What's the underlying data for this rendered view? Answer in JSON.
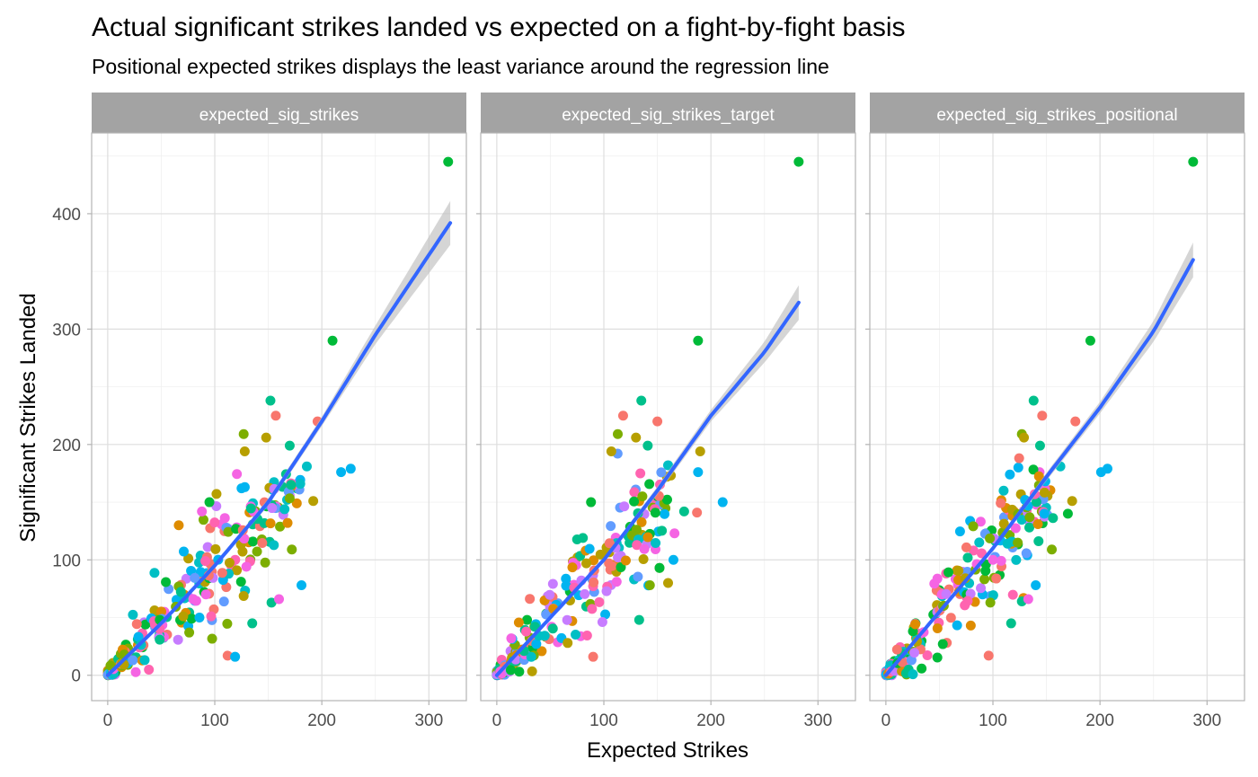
{
  "chart_data": {
    "type": "scatter",
    "title": "Actual significant strikes landed vs expected on a fight-by-fight basis",
    "subtitle": "Positional expected strikes displays the least variance around the regression line",
    "xlabel": "Expected Strikes",
    "ylabel": "Significant Strikes Landed",
    "xlim": [
      -15,
      335
    ],
    "ylim": [
      -22,
      470
    ],
    "x_ticks": [
      0,
      100,
      200,
      300
    ],
    "y_ticks": [
      0,
      100,
      200,
      300,
      400
    ],
    "grid": true,
    "legend": "none",
    "point_colors": [
      "#F8766D",
      "#DE8C00",
      "#B79F00",
      "#7CAE00",
      "#00BA38",
      "#00C08B",
      "#00BFC4",
      "#00B4F0",
      "#619CFF",
      "#C77CFF",
      "#F564E3",
      "#FF64B0"
    ],
    "line_color": "#3366FF",
    "ribbon_color": "#BEBEBE",
    "panels": [
      {
        "facet": "expected_sig_strikes",
        "regression_line": [
          [
            0,
            0
          ],
          [
            50,
            45
          ],
          [
            100,
            95
          ],
          [
            150,
            150
          ],
          [
            200,
            220
          ],
          [
            250,
            295
          ],
          [
            320,
            392
          ]
        ],
        "ribbon_halfwidth": [
          [
            0,
            1
          ],
          [
            100,
            2
          ],
          [
            200,
            4
          ],
          [
            250,
            8
          ],
          [
            320,
            19
          ]
        ],
        "cloud": [
          [
            0,
            0,
            28,
            2
          ],
          [
            5,
            4,
            26,
            4
          ],
          [
            15,
            13,
            24,
            7
          ],
          [
            30,
            27,
            22,
            10
          ],
          [
            50,
            45,
            22,
            13
          ],
          [
            70,
            68,
            24,
            18
          ],
          [
            90,
            85,
            26,
            22
          ],
          [
            110,
            105,
            28,
            25
          ],
          [
            130,
            125,
            27,
            25
          ],
          [
            150,
            145,
            22,
            18
          ],
          [
            170,
            158,
            15,
            12
          ]
        ],
        "outliers": [
          [
            318,
            445,
            "#00BA38"
          ],
          [
            210,
            290,
            "#00BA38"
          ],
          [
            152,
            238,
            "#00C08B"
          ],
          [
            157,
            225,
            "#F8766D"
          ],
          [
            196,
            220,
            "#F8766D"
          ],
          [
            127,
            209,
            "#7CAE00"
          ],
          [
            148,
            206,
            "#B79F00"
          ],
          [
            128,
            194,
            "#B79F00"
          ],
          [
            170,
            199,
            "#00C08B"
          ],
          [
            227,
            179,
            "#00B4F0"
          ],
          [
            218,
            176,
            "#00B4F0"
          ],
          [
            192,
            151,
            "#B79F00"
          ],
          [
            186,
            181,
            "#00BFC4"
          ],
          [
            181,
            78,
            "#00B4F0"
          ],
          [
            153,
            63,
            "#00C08B"
          ],
          [
            160,
            66,
            "#F564E3"
          ],
          [
            112,
            17,
            "#F8766D"
          ],
          [
            135,
            45,
            "#00C08B"
          ],
          [
            172,
            109,
            "#7CAE00"
          ],
          [
            125,
            162,
            "#00B4F0"
          ],
          [
            168,
            132,
            "#DE8C00"
          ],
          [
            95,
            150,
            "#00BA38"
          ],
          [
            119,
            16,
            "#00B4F0"
          ],
          [
            88,
            142,
            "#F564E3"
          ]
        ]
      },
      {
        "facet": "expected_sig_strikes_target",
        "regression_line": [
          [
            0,
            0
          ],
          [
            50,
            50
          ],
          [
            100,
            100
          ],
          [
            150,
            160
          ],
          [
            200,
            225
          ],
          [
            250,
            280
          ],
          [
            282,
            323
          ]
        ],
        "ribbon_halfwidth": [
          [
            0,
            1
          ],
          [
            100,
            2
          ],
          [
            200,
            5
          ],
          [
            250,
            9
          ],
          [
            282,
            15
          ]
        ],
        "cloud": [
          [
            0,
            0,
            26,
            2
          ],
          [
            5,
            5,
            24,
            4
          ],
          [
            15,
            15,
            22,
            8
          ],
          [
            30,
            30,
            22,
            12
          ],
          [
            50,
            50,
            22,
            16
          ],
          [
            70,
            70,
            24,
            20
          ],
          [
            90,
            90,
            25,
            24
          ],
          [
            110,
            110,
            26,
            26
          ],
          [
            130,
            128,
            25,
            24
          ],
          [
            150,
            145,
            18,
            18
          ]
        ],
        "outliers": [
          [
            282,
            445,
            "#00BA38"
          ],
          [
            188,
            290,
            "#00BA38"
          ],
          [
            135,
            238,
            "#00C08B"
          ],
          [
            118,
            225,
            "#F8766D"
          ],
          [
            150,
            220,
            "#F8766D"
          ],
          [
            113,
            209,
            "#7CAE00"
          ],
          [
            130,
            206,
            "#B79F00"
          ],
          [
            107,
            194,
            "#B79F00"
          ],
          [
            190,
            194,
            "#B79F00"
          ],
          [
            141,
            199,
            "#00C08B"
          ],
          [
            160,
            182,
            "#00BFC4"
          ],
          [
            188,
            176,
            "#00B4F0"
          ],
          [
            211,
            150,
            "#00B4F0"
          ],
          [
            187,
            141,
            "#F8766D"
          ],
          [
            175,
            142,
            "#00C08B"
          ],
          [
            166,
            123,
            "#F564E3"
          ],
          [
            152,
            93,
            "#7CAE00"
          ],
          [
            160,
            80,
            "#B79F00"
          ],
          [
            143,
            78,
            "#7CAE00"
          ],
          [
            88,
            150,
            "#00BA38"
          ],
          [
            136,
            155,
            "#7CAE00"
          ],
          [
            90,
            16,
            "#F8766D"
          ],
          [
            133,
            48,
            "#00C08B"
          ],
          [
            152,
            93,
            "#00BA38"
          ],
          [
            165,
            100,
            "#00B4F0"
          ]
        ]
      },
      {
        "facet": "expected_sig_strikes_positional",
        "regression_line": [
          [
            0,
            0
          ],
          [
            50,
            55
          ],
          [
            100,
            110
          ],
          [
            150,
            172
          ],
          [
            200,
            232
          ],
          [
            250,
            298
          ],
          [
            287,
            360
          ]
        ],
        "ribbon_halfwidth": [
          [
            0,
            1
          ],
          [
            100,
            2
          ],
          [
            200,
            5
          ],
          [
            250,
            9
          ],
          [
            287,
            15
          ]
        ],
        "cloud": [
          [
            0,
            0,
            26,
            2
          ],
          [
            5,
            5,
            24,
            4
          ],
          [
            15,
            16,
            22,
            7
          ],
          [
            30,
            32,
            22,
            10
          ],
          [
            50,
            55,
            23,
            14
          ],
          [
            70,
            76,
            24,
            18
          ],
          [
            90,
            98,
            25,
            22
          ],
          [
            110,
            118,
            26,
            24
          ],
          [
            130,
            138,
            24,
            22
          ],
          [
            150,
            155,
            18,
            16
          ]
        ],
        "outliers": [
          [
            287,
            445,
            "#00BA38"
          ],
          [
            191,
            290,
            "#00BA38"
          ],
          [
            138,
            238,
            "#00C08B"
          ],
          [
            146,
            225,
            "#F8766D"
          ],
          [
            177,
            220,
            "#F8766D"
          ],
          [
            127,
            209,
            "#7CAE00"
          ],
          [
            129,
            206,
            "#B79F00"
          ],
          [
            144,
            199,
            "#00C08B"
          ],
          [
            207,
            179,
            "#00B4F0"
          ],
          [
            201,
            176,
            "#00B4F0"
          ],
          [
            174,
            151,
            "#B79F00"
          ],
          [
            163,
            181,
            "#00BFC4"
          ],
          [
            140,
            78,
            "#00B4F0"
          ],
          [
            127,
            64,
            "#00C08B"
          ],
          [
            133,
            66,
            "#F564E3"
          ],
          [
            96,
            17,
            "#F8766D"
          ],
          [
            117,
            45,
            "#00C08B"
          ],
          [
            155,
            109,
            "#7CAE00"
          ],
          [
            142,
            131,
            "#DE8C00"
          ],
          [
            110,
            160,
            "#00BFC4"
          ],
          [
            130,
            152,
            "#00B4F0"
          ],
          [
            100,
            100,
            "#F564E3"
          ],
          [
            148,
            140,
            "#00B4F0"
          ],
          [
            170,
            140,
            "#00BA38"
          ]
        ]
      }
    ]
  }
}
